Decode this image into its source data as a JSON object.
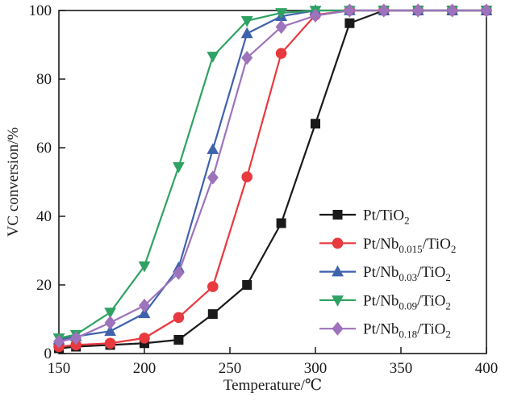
{
  "figure": {
    "kind": "scientific-line-chart",
    "background": "#ffffff",
    "axis_color": "#1a1a1a"
  },
  "chart_data": {
    "type": "line",
    "title": "",
    "xlabel": "Temperature/℃",
    "ylabel": "VC conversion/%",
    "xlim": [
      150,
      400
    ],
    "ylim": [
      0,
      100
    ],
    "xticks": [
      150,
      200,
      250,
      300,
      350,
      400
    ],
    "yticks": [
      0,
      20,
      40,
      60,
      80,
      100
    ],
    "grid": false,
    "legend_position": "lower right",
    "x": [
      150,
      160,
      180,
      200,
      220,
      240,
      260,
      280,
      300,
      320,
      340,
      360,
      380,
      400
    ],
    "series": [
      {
        "name": "Pt/TiO2",
        "label_parts": [
          {
            "t": "Pt/TiO"
          },
          {
            "t": "2",
            "sub": true
          }
        ],
        "color": "#1a1a1a",
        "marker": "square",
        "values": [
          1.5,
          2,
          2.5,
          3,
          4,
          11.5,
          20,
          38,
          67,
          96.3,
          100,
          100,
          100,
          100
        ]
      },
      {
        "name": "Pt/Nb0.015/TiO2",
        "label_parts": [
          {
            "t": "Pt/Nb"
          },
          {
            "t": "0.015",
            "sub": true
          },
          {
            "t": "/TiO"
          },
          {
            "t": "2",
            "sub": true
          }
        ],
        "color": "#e8393f",
        "marker": "circle",
        "values": [
          2,
          2.5,
          3,
          4.5,
          10.5,
          19.5,
          51.5,
          87.5,
          98.7,
          100,
          100,
          100,
          100,
          100
        ]
      },
      {
        "name": "Pt/Nb0.03/TiO2",
        "label_parts": [
          {
            "t": "Pt/Nb"
          },
          {
            "t": "0.03",
            "sub": true
          },
          {
            "t": "/TiO"
          },
          {
            "t": "2",
            "sub": true
          }
        ],
        "color": "#3f62ac",
        "marker": "triangle-up",
        "values": [
          4,
          5,
          6.5,
          11.7,
          25,
          59.5,
          93.3,
          98.3,
          100,
          100,
          100,
          100,
          100,
          100
        ]
      },
      {
        "name": "Pt/Nb0.09/TiO2",
        "label_parts": [
          {
            "t": "Pt/Nb"
          },
          {
            "t": "0.09",
            "sub": true
          },
          {
            "t": "/TiO"
          },
          {
            "t": "2",
            "sub": true
          }
        ],
        "color": "#2fa263",
        "marker": "triangle-down",
        "values": [
          4.5,
          5.5,
          12,
          25.5,
          54.4,
          86.6,
          97,
          99.3,
          100,
          100,
          100,
          100,
          100,
          100
        ]
      },
      {
        "name": "Pt/Nb0.18/TiO2",
        "label_parts": [
          {
            "t": "Pt/Nb"
          },
          {
            "t": "0.18",
            "sub": true
          },
          {
            "t": "/TiO"
          },
          {
            "t": "2",
            "sub": true
          }
        ],
        "color": "#9d73bb",
        "marker": "diamond",
        "values": [
          3.5,
          4.5,
          9,
          14,
          23.5,
          51.3,
          86.2,
          95.2,
          98.5,
          100,
          100,
          100,
          100,
          100
        ]
      }
    ]
  }
}
